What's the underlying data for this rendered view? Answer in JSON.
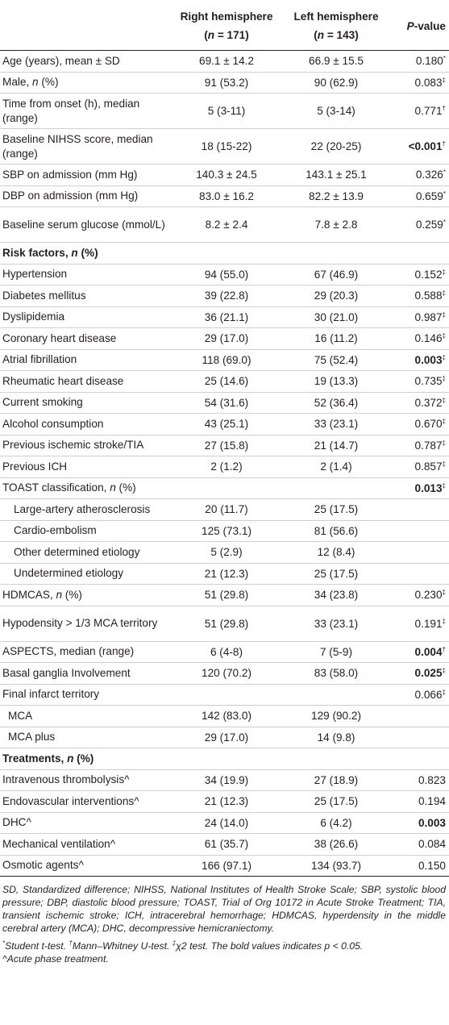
{
  "header": {
    "col1": "",
    "col2_line1": "Right hemisphere",
    "col2_line2": "(n = 171)",
    "col3_line1": "Left hemisphere",
    "col3_line2": "(n = 143)",
    "col4": "P-value"
  },
  "rows": [
    {
      "label": "Age (years), mean ± SD",
      "right": "69.1 ± 14.2",
      "left": "66.9 ± 15.5",
      "p": "0.180",
      "sup": "*",
      "bold": false,
      "type": "row"
    },
    {
      "label": "Male, n (%)",
      "right": "91 (53.2)",
      "left": "90 (62.9)",
      "p": "0.083",
      "sup": "‡",
      "bold": false,
      "type": "row"
    },
    {
      "label": "Time from onset (h), median (range)",
      "right": "5 (3-11)",
      "left": "5 (3-14)",
      "p": "0.771",
      "sup": "†",
      "bold": false,
      "type": "row2"
    },
    {
      "label": "Baseline NIHSS score, median (range)",
      "right": "18 (15-22)",
      "left": "22 (20-25)",
      "p": "<0.001",
      "sup": "†",
      "bold": true,
      "type": "row2"
    },
    {
      "label": "SBP on admission (mm Hg)",
      "right": "140.3 ± 24.5",
      "left": "143.1 ± 25.1",
      "p": "0.326",
      "sup": "*",
      "bold": false,
      "type": "row"
    },
    {
      "label": "DBP on admission (mm Hg)",
      "right": "83.0 ± 16.2",
      "left": "82.2 ± 13.9",
      "p": "0.659",
      "sup": "*",
      "bold": false,
      "type": "row"
    },
    {
      "label": "Baseline serum glucose (mmol/L)",
      "right": "8.2 ± 2.4",
      "left": "7.8 ± 2.8",
      "p": "0.259",
      "sup": "*",
      "bold": false,
      "type": "row2"
    },
    {
      "label": "Risk factors, n (%)",
      "right": "",
      "left": "",
      "p": "",
      "sup": "",
      "bold": false,
      "type": "section"
    },
    {
      "label": "Hypertension",
      "right": "94 (55.0)",
      "left": "67 (46.9)",
      "p": "0.152",
      "sup": "‡",
      "bold": false,
      "type": "row"
    },
    {
      "label": "Diabetes mellitus",
      "right": "39 (22.8)",
      "left": "29 (20.3)",
      "p": "0.588",
      "sup": "‡",
      "bold": false,
      "type": "row"
    },
    {
      "label": "Dyslipidemia",
      "right": "36 (21.1)",
      "left": "30 (21.0)",
      "p": "0.987",
      "sup": "‡",
      "bold": false,
      "type": "row"
    },
    {
      "label": "Coronary heart disease",
      "right": "29 (17.0)",
      "left": "16 (11.2)",
      "p": "0.146",
      "sup": "‡",
      "bold": false,
      "type": "row"
    },
    {
      "label": "Atrial fibrillation",
      "right": "118 (69.0)",
      "left": "75 (52.4)",
      "p": "0.003",
      "sup": "‡",
      "bold": true,
      "type": "row"
    },
    {
      "label": "Rheumatic heart disease",
      "right": "25 (14.6)",
      "left": "19 (13.3)",
      "p": "0.735",
      "sup": "‡",
      "bold": false,
      "type": "row"
    },
    {
      "label": "Current smoking",
      "right": "54 (31.6)",
      "left": "52 (36.4)",
      "p": "0.372",
      "sup": "‡",
      "bold": false,
      "type": "row"
    },
    {
      "label": "Alcohol consumption",
      "right": "43 (25.1)",
      "left": "33 (23.1)",
      "p": "0.670",
      "sup": "‡",
      "bold": false,
      "type": "row"
    },
    {
      "label": "Previous ischemic stroke/TIA",
      "right": "27 (15.8)",
      "left": "21 (14.7)",
      "p": "0.787",
      "sup": "‡",
      "bold": false,
      "type": "row"
    },
    {
      "label": "Previous ICH",
      "right": "2 (1.2)",
      "left": "2 (1.4)",
      "p": "0.857",
      "sup": "‡",
      "bold": false,
      "type": "row"
    },
    {
      "label": "TOAST classification, n (%)",
      "right": "",
      "left": "",
      "p": "0.013",
      "sup": "‡",
      "bold": true,
      "type": "row"
    },
    {
      "label": "Large-artery atherosclerosis",
      "right": "20 (11.7)",
      "left": "25 (17.5)",
      "p": "",
      "sup": "",
      "bold": false,
      "type": "sub1"
    },
    {
      "label": "Cardio-embolism",
      "right": "125 (73.1)",
      "left": "81 (56.6)",
      "p": "",
      "sup": "",
      "bold": false,
      "type": "sub1"
    },
    {
      "label": "Other determined etiology",
      "right": "5 (2.9)",
      "left": "12 (8.4)",
      "p": "",
      "sup": "",
      "bold": false,
      "type": "sub1"
    },
    {
      "label": "Undetermined etiology",
      "right": "21 (12.3)",
      "left": "25 (17.5)",
      "p": "",
      "sup": "",
      "bold": false,
      "type": "sub1"
    },
    {
      "label": "HDMCAS, n (%)",
      "right": "51 (29.8)",
      "left": "34 (23.8)",
      "p": "0.230",
      "sup": "‡",
      "bold": false,
      "type": "row"
    },
    {
      "label": "Hypodensity > 1/3 MCA territory",
      "right": "51 (29.8)",
      "left": "33 (23.1)",
      "p": "0.191",
      "sup": "‡",
      "bold": false,
      "type": "row2"
    },
    {
      "label": "ASPECTS, median (range)",
      "right": "6 (4-8)",
      "left": "7 (5-9)",
      "p": "0.004",
      "sup": "†",
      "bold": true,
      "type": "row"
    },
    {
      "label": "Basal ganglia Involvement",
      "right": "120 (70.2)",
      "left": "83 (58.0)",
      "p": "0.025",
      "sup": "‡",
      "bold": true,
      "type": "row"
    },
    {
      "label": "Final infarct territory",
      "right": "",
      "left": "",
      "p": "0.066",
      "sup": "‡",
      "bold": false,
      "type": "row"
    },
    {
      "label": "MCA",
      "right": "142 (83.0)",
      "left": "129 (90.2)",
      "p": "",
      "sup": "",
      "bold": false,
      "type": "sub2"
    },
    {
      "label": "MCA plus",
      "right": "29 (17.0)",
      "left": "14 (9.8)",
      "p": "",
      "sup": "",
      "bold": false,
      "type": "sub2"
    },
    {
      "label": "Treatments, n (%)",
      "right": "",
      "left": "",
      "p": "",
      "sup": "",
      "bold": false,
      "type": "section"
    },
    {
      "label": "Intravenous thrombolysis^",
      "right": "34 (19.9)",
      "left": "27 (18.9)",
      "p": "0.823",
      "sup": "",
      "bold": false,
      "type": "row"
    },
    {
      "label": "Endovascular interventions^",
      "right": "21 (12.3)",
      "left": "25 (17.5)",
      "p": "0.194",
      "sup": "",
      "bold": false,
      "type": "row"
    },
    {
      "label": "DHC^",
      "right": "24 (14.0)",
      "left": "6 (4.2)",
      "p": "0.003",
      "sup": "",
      "bold": true,
      "type": "row"
    },
    {
      "label": "Mechanical ventilation^",
      "right": "61 (35.7)",
      "left": "38 (26.6)",
      "p": "0.084",
      "sup": "",
      "bold": false,
      "type": "row"
    },
    {
      "label": "Osmotic agents^",
      "right": "166 (97.1)",
      "left": "134 (93.7)",
      "p": "0.150",
      "sup": "",
      "bold": false,
      "type": "row"
    }
  ],
  "footnotes": {
    "abbreviations": "SD, Standardized difference; NIHSS, National Institutes of Health Stroke Scale; SBP, systolic blood pressure; DBP, diastolic blood pressure; TOAST, Trial of Org 10172 in Acute Stroke Treatment; TIA, transient ischemic stroke; ICH, intracerebral hemorrhage; HDMCAS, hyperdensity in the middle cerebral artery (MCA); DHC, decompressive hemicraniectomy.",
    "tests_sup1": "*",
    "tests_t1": "Student t-test. ",
    "tests_sup2": "†",
    "tests_t2": "Mann–Whitney U-test. ",
    "tests_sup3": "‡",
    "tests_t3": "χ2 test. The bold values indicates p < 0.05.",
    "tests_t4": "^Acute phase treatment."
  }
}
